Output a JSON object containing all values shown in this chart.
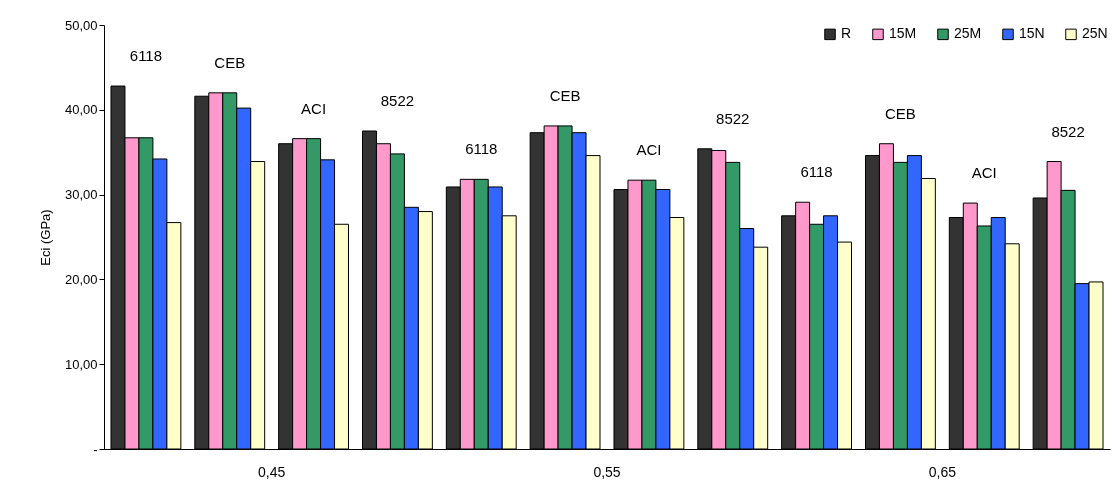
{
  "chart_data": {
    "type": "bar",
    "ylabel": "Eci (GPa)",
    "categories": [
      "6118",
      "CEB",
      "ACI",
      "8522",
      "6118",
      "CEB",
      "ACI",
      "8522",
      "6118",
      "CEB",
      "ACI",
      "8522"
    ],
    "series": [
      {
        "name": "R",
        "color": "#333333",
        "values": [
          42.8,
          41.6,
          36.0,
          37.5,
          30.9,
          37.3,
          30.6,
          35.4,
          27.5,
          34.6,
          27.3,
          29.6
        ]
      },
      {
        "name": "15M",
        "color": "#ff99cc",
        "values": [
          36.7,
          42.0,
          36.6,
          36.0,
          31.8,
          38.1,
          31.7,
          35.2,
          29.1,
          36.0,
          29.0,
          33.9
        ]
      },
      {
        "name": "25M",
        "color": "#339966",
        "values": [
          36.7,
          42.0,
          36.6,
          34.8,
          31.8,
          38.1,
          31.7,
          33.8,
          26.5,
          33.8,
          26.3,
          30.5
        ]
      },
      {
        "name": "15N",
        "color": "#3366ff",
        "values": [
          34.2,
          40.2,
          34.1,
          28.5,
          30.9,
          37.3,
          30.6,
          26.0,
          27.5,
          34.6,
          27.3,
          19.5
        ]
      },
      {
        "name": "25N",
        "color": "#ffffcc",
        "values": [
          26.7,
          33.9,
          26.5,
          28.0,
          27.5,
          34.6,
          27.3,
          23.8,
          24.4,
          31.9,
          24.2,
          19.7
        ]
      }
    ],
    "ylim": [
      0,
      50
    ],
    "yticks": [
      {
        "value": 0,
        "label": "-"
      },
      {
        "value": 10,
        "label": "10,00"
      },
      {
        "value": 20,
        "label": "20,00"
      },
      {
        "value": 30,
        "label": "30,00"
      },
      {
        "value": 40,
        "label": "40,00"
      },
      {
        "value": 50,
        "label": "50,00"
      }
    ],
    "annotations": [
      "0,45",
      "0,55",
      "0,65"
    ],
    "legend": "top right",
    "grid": false
  }
}
